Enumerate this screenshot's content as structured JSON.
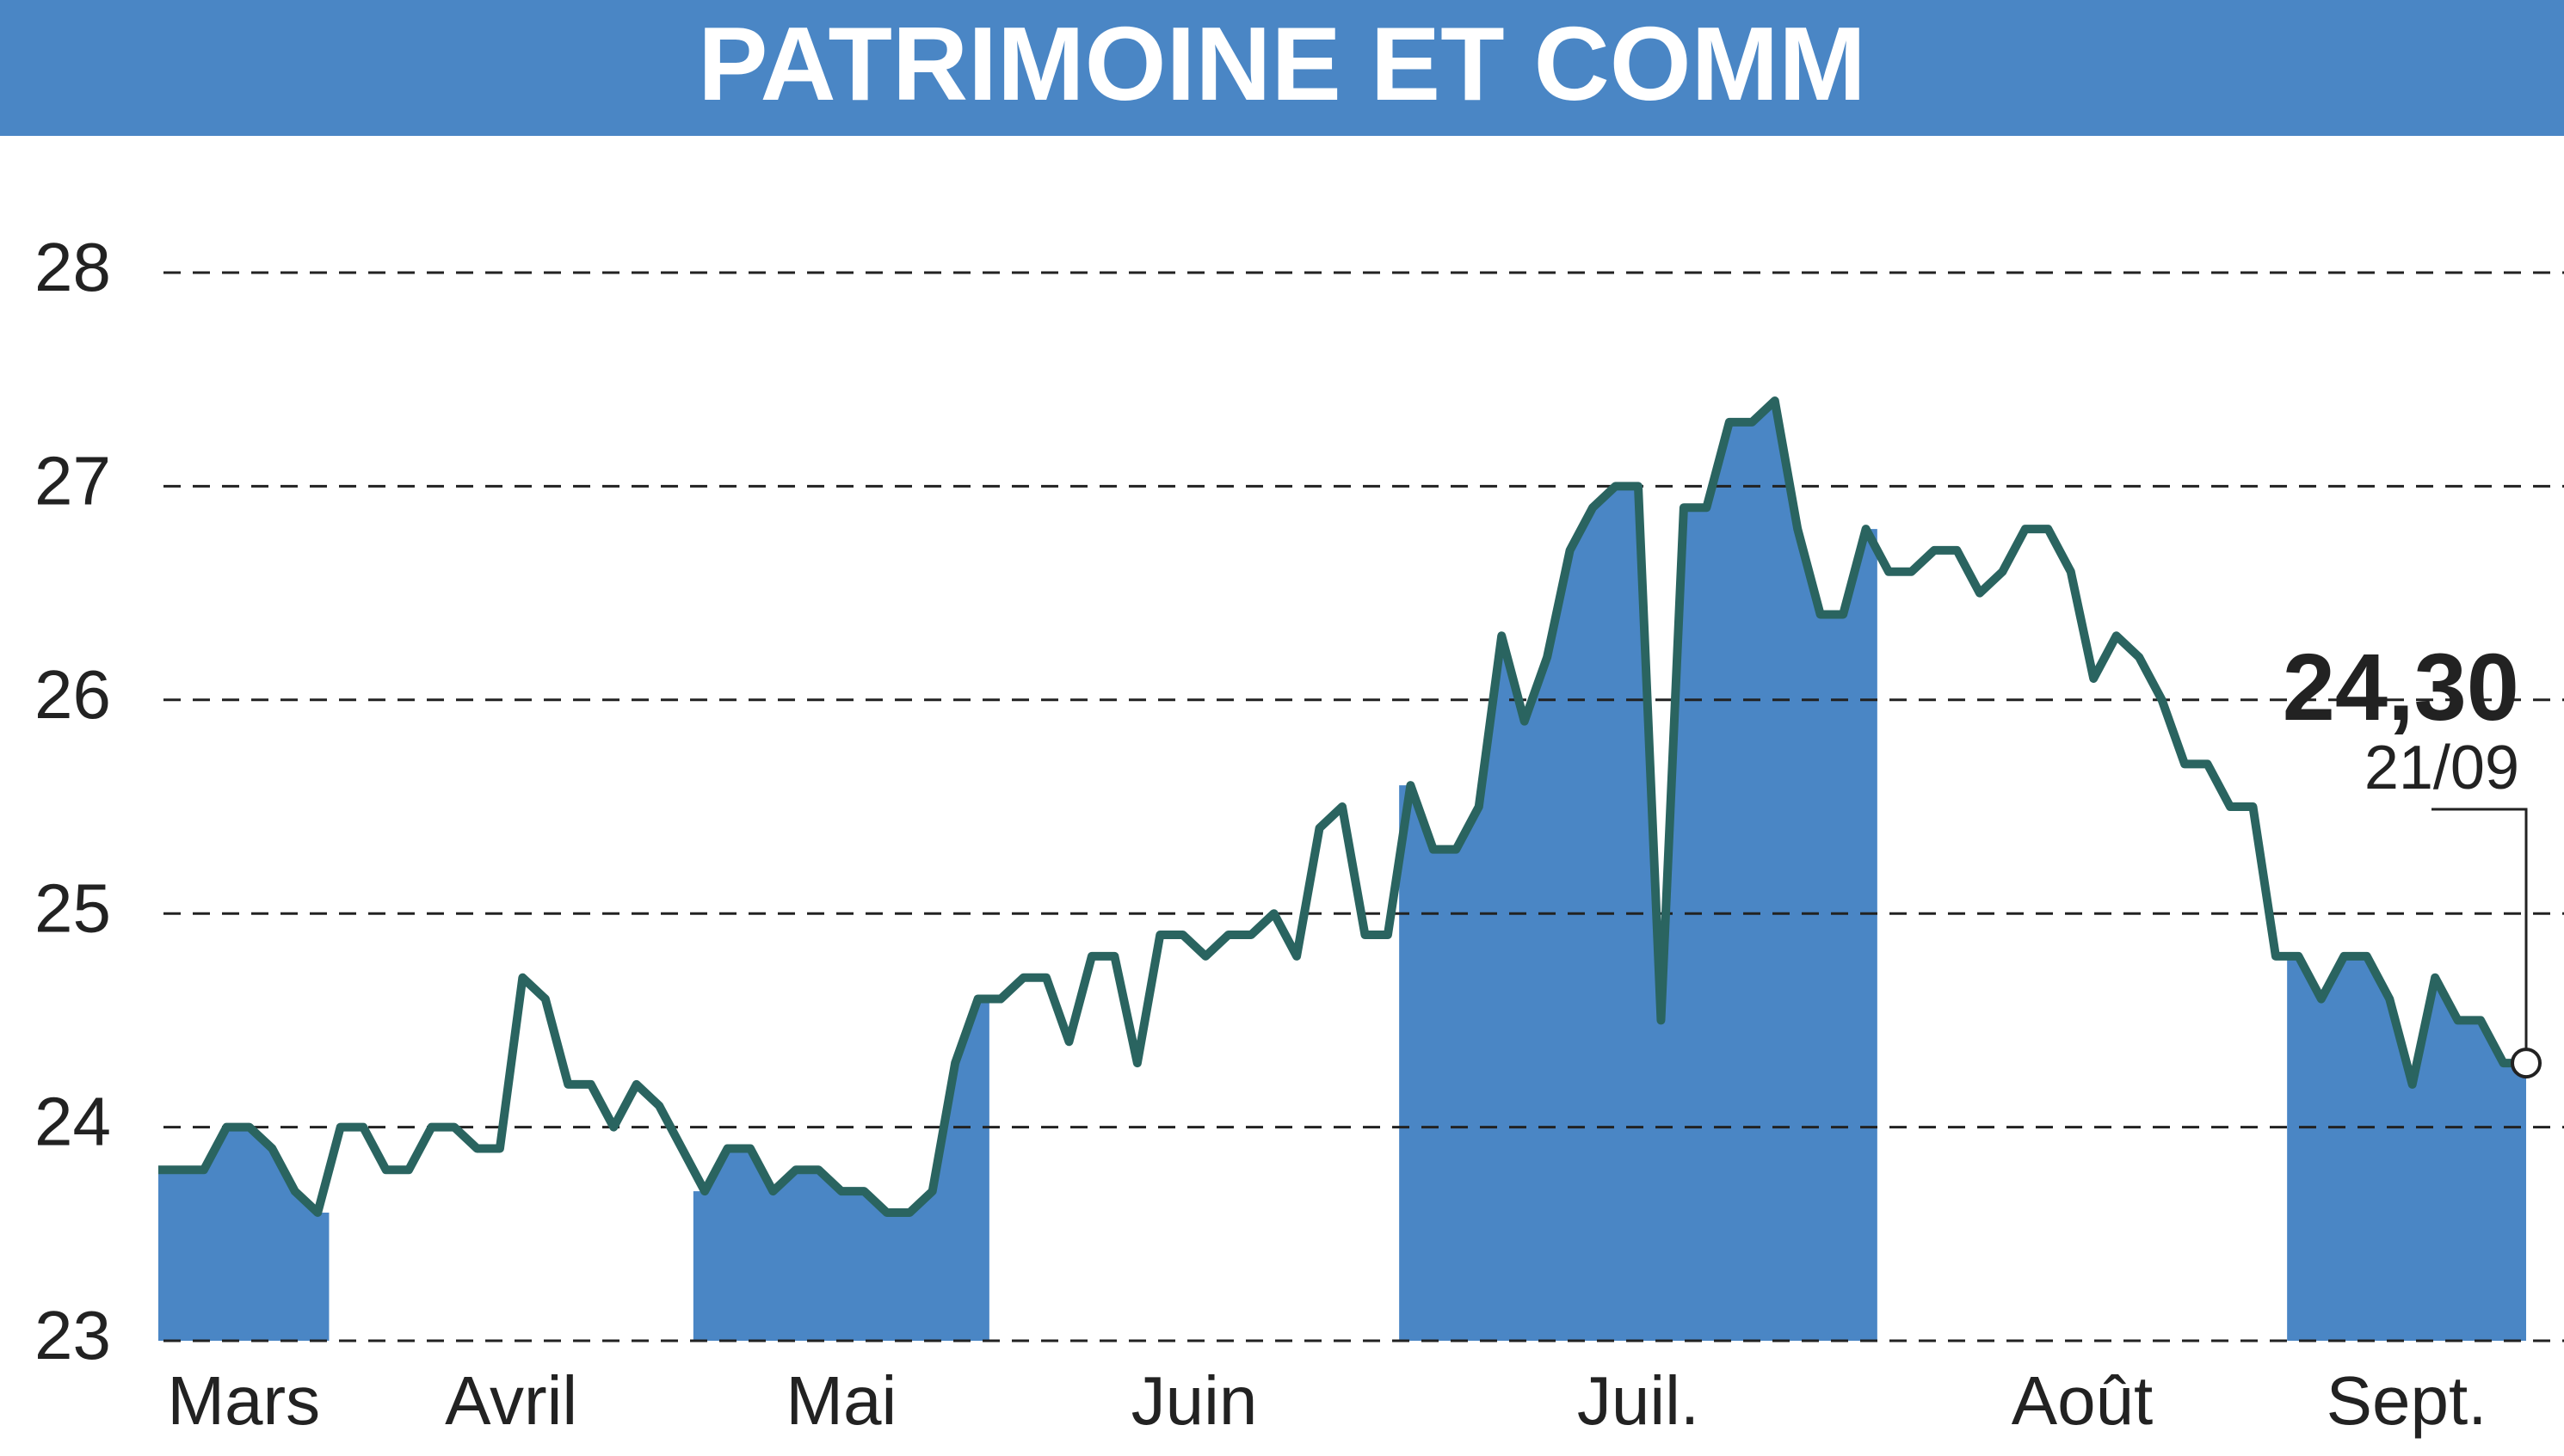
{
  "chart_data": {
    "type": "line",
    "title": "PATRIMOINE ET COMM",
    "months": [
      {
        "name": "Mars",
        "values": [
          23.8,
          23.8,
          23.8,
          24.0,
          24.0,
          23.9,
          23.7,
          23.6
        ]
      },
      {
        "name": "Avril",
        "values": [
          24.0,
          24.0,
          23.8,
          23.8,
          24.0,
          24.0,
          23.9,
          23.9,
          24.7,
          24.6,
          24.2,
          24.2,
          24.0,
          24.2,
          24.1,
          23.9
        ]
      },
      {
        "name": "Mai",
        "values": [
          23.7,
          23.9,
          23.9,
          23.7,
          23.8,
          23.8,
          23.7,
          23.7,
          23.6,
          23.6,
          23.7,
          24.3,
          24.6
        ]
      },
      {
        "name": "Juin",
        "values": [
          24.6,
          24.7,
          24.7,
          24.4,
          24.8,
          24.8,
          24.3,
          24.9,
          24.9,
          24.8,
          24.9,
          24.9,
          25.0,
          24.8,
          25.4,
          25.5,
          24.9,
          24.9
        ]
      },
      {
        "name": "Juil.",
        "values": [
          25.6,
          25.3,
          25.3,
          25.5,
          26.3,
          25.9,
          26.2,
          26.7,
          26.9,
          27.0,
          27.0,
          24.5,
          26.9,
          26.9,
          27.3,
          27.3,
          27.4,
          26.8,
          26.4,
          26.4,
          26.8
        ]
      },
      {
        "name": "Août",
        "values": [
          26.6,
          26.6,
          26.7,
          26.7,
          26.5,
          26.6,
          26.8,
          26.8,
          26.6,
          26.1,
          26.3,
          26.2,
          26.0,
          25.7,
          25.7,
          25.5,
          25.5,
          24.8
        ]
      },
      {
        "name": "Sept.",
        "values": [
          24.8,
          24.6,
          24.8,
          24.8,
          24.6,
          24.2,
          24.7,
          24.5,
          24.5,
          24.3,
          24.3
        ]
      }
    ],
    "color": "#2a6460",
    "area_color": "#4a86c5",
    "ylim": [
      23,
      28
    ],
    "yticks": [
      23,
      24,
      25,
      26,
      27,
      28
    ],
    "grid": true,
    "annotation": {
      "value": 24.3,
      "label": "24,30",
      "date": "21/09"
    }
  }
}
